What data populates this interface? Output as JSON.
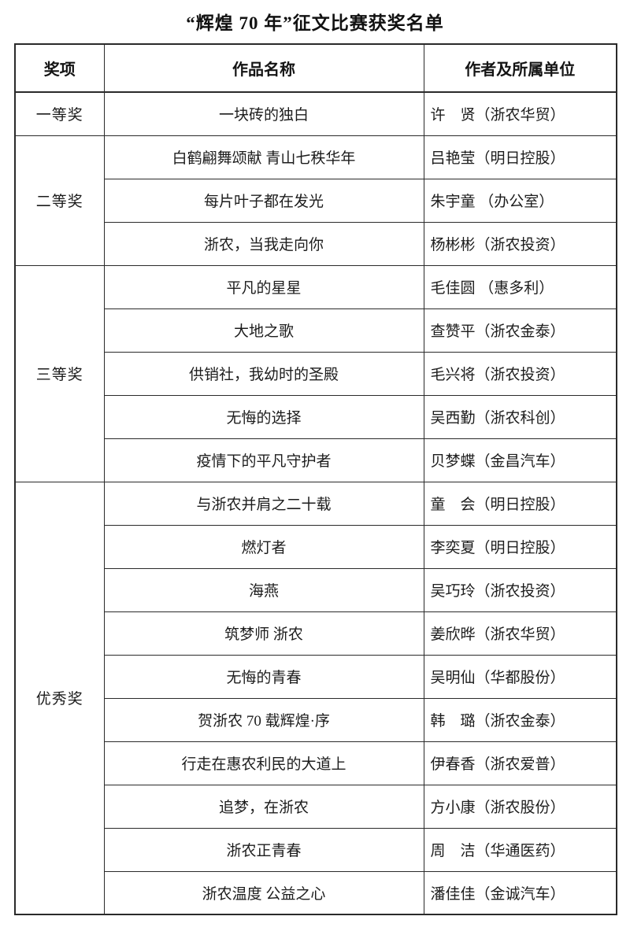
{
  "title": "“辉煌 70 年”征文比赛获奖名单",
  "table": {
    "headers": [
      "奖项",
      "作品名称",
      "作者及所属单位"
    ],
    "groups": [
      {
        "award": "一等奖",
        "entries": [
          {
            "work": "一块砖的独白",
            "author": "许　贤（浙农华贸）"
          }
        ]
      },
      {
        "award": "二等奖",
        "entries": [
          {
            "work": "白鹤翩舞颂献 青山七秩华年",
            "author": "吕艳莹（明日控股）"
          },
          {
            "work": "每片叶子都在发光",
            "author": "朱宇童 （办公室）"
          },
          {
            "work": "浙农，当我走向你",
            "author": "杨彬彬（浙农投资）"
          }
        ]
      },
      {
        "award": "三等奖",
        "entries": [
          {
            "work": "平凡的星星",
            "author": "毛佳圆 （惠多利）"
          },
          {
            "work": "大地之歌",
            "author": "查赞平（浙农金泰）"
          },
          {
            "work": "供销社，我幼时的圣殿",
            "author": "毛兴将（浙农投资）"
          },
          {
            "work": "无悔的选择",
            "author": "吴西勤（浙农科创）"
          },
          {
            "work": "疫情下的平凡守护者",
            "author": "贝梦蝶（金昌汽车）"
          }
        ]
      },
      {
        "award": "优秀奖",
        "entries": [
          {
            "work": "与浙农并肩之二十载",
            "author": "童　会（明日控股）"
          },
          {
            "work": "燃灯者",
            "author": "李奕夏（明日控股）"
          },
          {
            "work": "海燕",
            "author": "吴巧玲（浙农投资）"
          },
          {
            "work": "筑梦师 浙农",
            "author": "姜欣晔（浙农华贸）"
          },
          {
            "work": "无悔的青春",
            "author": "吴明仙（华都股份）"
          },
          {
            "work": "贺浙农 70 载辉煌·序",
            "author": "韩　璐（浙农金泰）"
          },
          {
            "work": "行走在惠农利民的大道上",
            "author": "伊春香（浙农爱普）"
          },
          {
            "work": "追梦，在浙农",
            "author": "方小康（浙农股份）"
          },
          {
            "work": "浙农正青春",
            "author": "周　洁（华通医药）"
          },
          {
            "work": "浙农温度 公益之心",
            "author": "潘佳佳（金诚汽车）"
          }
        ]
      }
    ]
  }
}
